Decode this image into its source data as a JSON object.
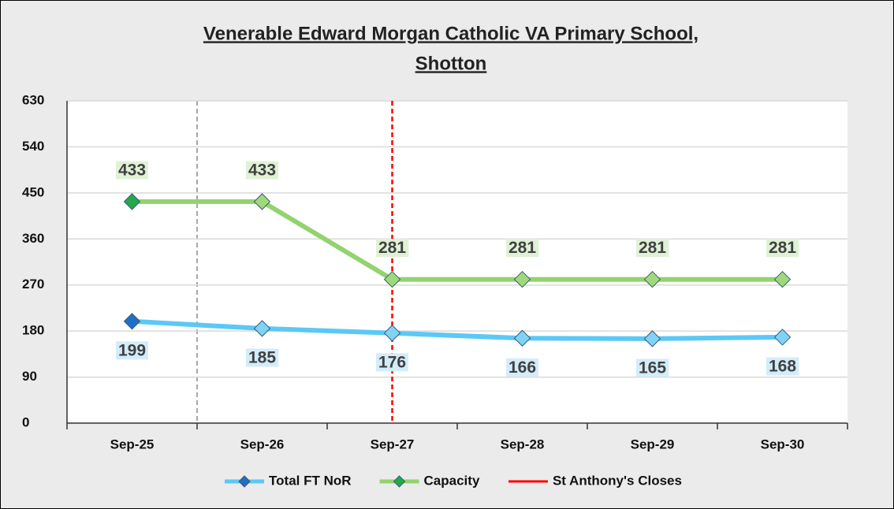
{
  "chart_data": {
    "type": "line",
    "title": [
      "Venerable Edward Morgan Catholic VA Primary School,",
      "Shotton"
    ],
    "categories": [
      "Sep-25",
      "Sep-26",
      "Sep-27",
      "Sep-28",
      "Sep-29",
      "Sep-30"
    ],
    "series": [
      {
        "name": "Total FT NoR",
        "color": "#5bc8f5",
        "marker_colors": [
          "#1f6fc5",
          "#7fd3f7",
          "#7fd3f7",
          "#7fd3f7",
          "#7fd3f7",
          "#7fd3f7"
        ],
        "label_background": "#d3ecfa",
        "label_position": "below",
        "values": [
          199,
          185,
          176,
          166,
          165,
          168
        ]
      },
      {
        "name": "Capacity",
        "color": "#92d36e",
        "marker_colors": [
          "#22a94a",
          "#9fd97c",
          "#9fd97c",
          "#9fd97c",
          "#9fd97c",
          "#9fd97c"
        ],
        "label_background": "#e0f2d6",
        "label_position": "above",
        "values": [
          433,
          433,
          281,
          281,
          281,
          281
        ]
      }
    ],
    "vlines": [
      {
        "name": "St Anthony's Closes",
        "color": "#ff0000",
        "at": "Sep-27"
      }
    ],
    "ylim": [
      0,
      630
    ],
    "yticks": [
      0,
      90,
      180,
      270,
      360,
      450,
      540,
      630
    ],
    "grid": true
  }
}
